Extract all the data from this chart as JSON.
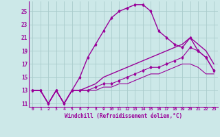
{
  "xlabel": "Windchill (Refroidissement éolien,°C)",
  "background_color": "#cce8e8",
  "grid_color": "#aacccc",
  "line_color": "#990099",
  "xlim": [
    -0.5,
    23.5
  ],
  "ylim": [
    10.5,
    26.5
  ],
  "yticks": [
    11,
    13,
    15,
    17,
    19,
    21,
    23,
    25
  ],
  "xticks": [
    0,
    1,
    2,
    3,
    4,
    5,
    6,
    7,
    8,
    9,
    10,
    11,
    12,
    13,
    14,
    15,
    16,
    17,
    18,
    19,
    20,
    21,
    22,
    23
  ],
  "series": [
    {
      "x": [
        0,
        1,
        2,
        3,
        4,
        5,
        6,
        7,
        8,
        9,
        10,
        11,
        12,
        13,
        14,
        15,
        16,
        17,
        18,
        19,
        20,
        21,
        22,
        23
      ],
      "y": [
        13,
        13,
        11,
        13,
        11,
        13,
        15,
        18,
        20,
        22,
        24,
        25,
        25.5,
        26,
        26,
        25,
        22,
        21,
        20,
        19.5,
        21,
        19,
        18,
        16
      ],
      "marker": true,
      "linewidth": 1.0
    },
    {
      "x": [
        0,
        1,
        2,
        3,
        4,
        5,
        6,
        7,
        8,
        9,
        10,
        11,
        12,
        13,
        14,
        15,
        16,
        17,
        18,
        19,
        20,
        21,
        22,
        23
      ],
      "y": [
        13,
        13,
        11,
        13,
        11,
        13,
        13,
        13.5,
        14,
        15,
        15.5,
        16,
        16.5,
        17,
        17.5,
        18,
        18.5,
        19,
        19.5,
        20,
        21,
        20,
        19,
        17
      ],
      "marker": false,
      "linewidth": 1.0
    },
    {
      "x": [
        0,
        1,
        2,
        3,
        4,
        5,
        6,
        7,
        8,
        9,
        10,
        11,
        12,
        13,
        14,
        15,
        16,
        17,
        18,
        19,
        20,
        21,
        22,
        23
      ],
      "y": [
        13,
        13,
        11,
        13,
        11,
        13,
        13,
        13,
        13.5,
        14,
        14,
        14.5,
        15,
        15.5,
        16,
        16.5,
        16.5,
        17,
        17.5,
        18,
        19.5,
        19,
        18,
        16
      ],
      "marker": true,
      "linewidth": 0.8
    },
    {
      "x": [
        0,
        1,
        2,
        3,
        4,
        5,
        6,
        7,
        8,
        9,
        10,
        11,
        12,
        13,
        14,
        15,
        16,
        17,
        18,
        19,
        20,
        21,
        22,
        23
      ],
      "y": [
        13,
        13,
        11,
        13,
        11,
        13,
        13,
        13,
        13,
        13.5,
        13.5,
        14,
        14,
        14.5,
        15,
        15.5,
        15.5,
        16,
        16.5,
        17,
        17,
        16.5,
        15.5,
        15.5
      ],
      "marker": false,
      "linewidth": 0.8
    }
  ]
}
